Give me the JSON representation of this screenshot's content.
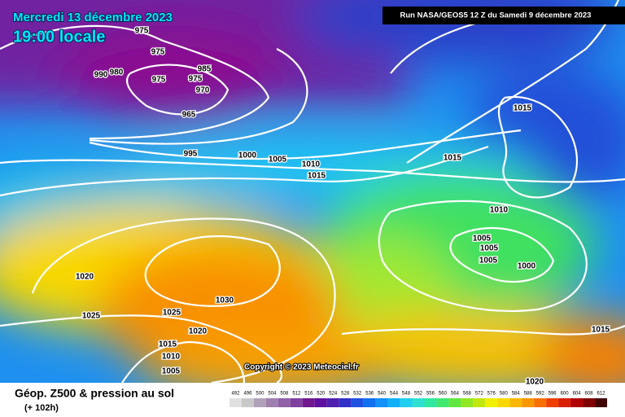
{
  "header": {
    "date": "Mercredi 13 décembre 2023",
    "time": "19:00 locale",
    "run": "Run NASA/GEOS5 12 Z du Samedi 9 décembre 2023"
  },
  "isobar_labels": [
    "975",
    "975",
    "990",
    "980",
    "985",
    "975",
    "975",
    "970",
    "965",
    "995",
    "1000",
    "1005",
    "1010",
    "1015",
    "1015",
    "1015",
    "1010",
    "1005",
    "1005",
    "1005",
    "1000",
    "1020",
    "1025",
    "1025",
    "1030",
    "1020",
    "1015",
    "1010",
    "1005",
    "1015",
    "1020"
  ],
  "footer": {
    "title": "Géop. Z500 & pression au sol",
    "subtitle": "(+ 102h)",
    "copyright": "Copyright © 2023 Meteociel.fr"
  },
  "legend": {
    "values": [
      492,
      496,
      500,
      504,
      508,
      512,
      516,
      520,
      524,
      528,
      532,
      536,
      540,
      544,
      548,
      552,
      556,
      560,
      564,
      568,
      572,
      576,
      580,
      584,
      588,
      592,
      596,
      600,
      604,
      608,
      612
    ],
    "colors": [
      "#e0e0e0",
      "#c8c8c8",
      "#b0a0b8",
      "#a080b0",
      "#9060a8",
      "#8040a0",
      "#701890",
      "#6010a0",
      "#5020b0",
      "#3030c8",
      "#2050e0",
      "#1070f0",
      "#1090f8",
      "#10b0f8",
      "#20d0f0",
      "#30e0d0",
      "#30e8a0",
      "#40e870",
      "#60e840",
      "#90e820",
      "#c0e810",
      "#f0f000",
      "#f8d800",
      "#f8b800",
      "#f89800",
      "#f87000",
      "#f04000",
      "#d82000",
      "#b00000",
      "#800000",
      "#400000"
    ]
  }
}
